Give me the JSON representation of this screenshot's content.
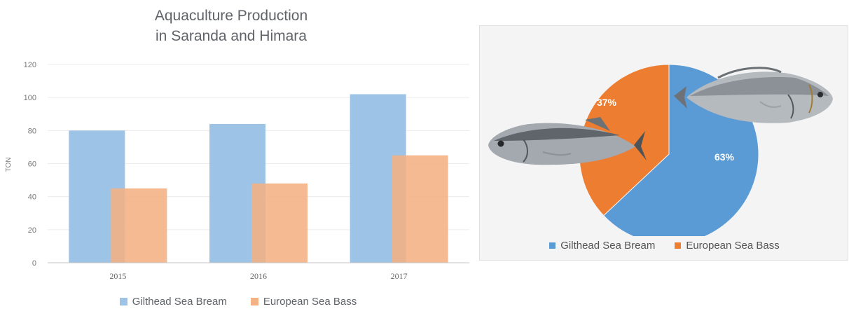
{
  "chart_data": [
    {
      "type": "bar",
      "title_line1": "Aquaculture Production",
      "title_line2": "in Saranda and Himara",
      "ylabel": "TON",
      "ylim": [
        0,
        120
      ],
      "yticks": [
        "0",
        "20",
        "40",
        "60",
        "80",
        "100",
        "120"
      ],
      "categories": [
        "2015",
        "2016",
        "2017"
      ],
      "series": [
        {
          "name": "Gilthead Sea Bream",
          "values": [
            80,
            84,
            102
          ],
          "color": "#9dc3e6"
        },
        {
          "name": "European Sea Bass",
          "values": [
            45,
            48,
            65
          ],
          "color": "#f4b183"
        }
      ],
      "legend_position": "bottom",
      "grid": true
    },
    {
      "type": "pie",
      "slices": [
        {
          "name": "Gilthead Sea Bream",
          "value": 63,
          "label": "63%",
          "color": "#5b9bd5"
        },
        {
          "name": "European Sea Bass",
          "value": 37,
          "label": "37%",
          "color": "#ed7d31"
        }
      ],
      "legend_position": "bottom",
      "decorations": [
        "gilthead-sea-bream-fish-image",
        "european-sea-bass-fish-image"
      ]
    }
  ]
}
